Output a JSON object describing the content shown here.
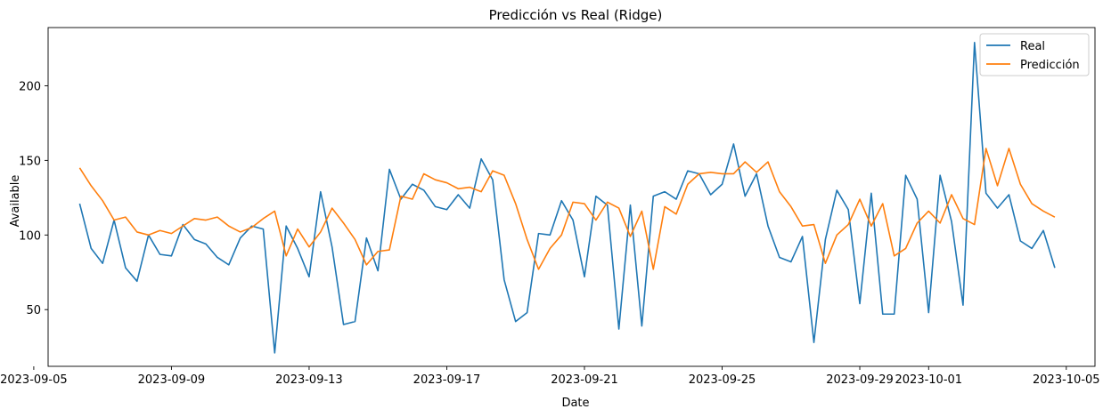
{
  "chart_data": {
    "type": "line",
    "title": "Predicción vs Real (Ridge)",
    "xlabel": "Date",
    "ylabel": "Available",
    "x_axis_type": "date",
    "xlim": [
      "2023-09-05T10:00",
      "2023-10-05T20:00"
    ],
    "ylim": [
      12,
      239
    ],
    "x_ticks": [
      "2023-09-05",
      "2023-09-09",
      "2023-09-13",
      "2023-09-17",
      "2023-09-21",
      "2023-09-25",
      "2023-09-29",
      "2023-10-01",
      "2023-10-05"
    ],
    "y_ticks": [
      50,
      100,
      150,
      200
    ],
    "legend": {
      "position": "top-right",
      "entries": [
        "Real",
        "Predicción"
      ]
    },
    "grid": false,
    "series": [
      {
        "name": "Real",
        "color": "#1f77b4",
        "points": [
          [
            "2023-09-06T08:00",
            121
          ],
          [
            "2023-09-06T16:00",
            91
          ],
          [
            "2023-09-07T00:00",
            81
          ],
          [
            "2023-09-07T08:00",
            110
          ],
          [
            "2023-09-07T16:00",
            78
          ],
          [
            "2023-09-08T00:00",
            69
          ],
          [
            "2023-09-08T08:00",
            100
          ],
          [
            "2023-09-08T16:00",
            87
          ],
          [
            "2023-09-09T00:00",
            86
          ],
          [
            "2023-09-09T08:00",
            107
          ],
          [
            "2023-09-09T16:00",
            97
          ],
          [
            "2023-09-10T00:00",
            94
          ],
          [
            "2023-09-10T08:00",
            85
          ],
          [
            "2023-09-10T16:00",
            80
          ],
          [
            "2023-09-11T00:00",
            98
          ],
          [
            "2023-09-11T08:00",
            106
          ],
          [
            "2023-09-11T16:00",
            104
          ],
          [
            "2023-09-12T00:00",
            21
          ],
          [
            "2023-09-12T08:00",
            106
          ],
          [
            "2023-09-12T16:00",
            91
          ],
          [
            "2023-09-13T00:00",
            72
          ],
          [
            "2023-09-13T08:00",
            129
          ],
          [
            "2023-09-13T16:00",
            92
          ],
          [
            "2023-09-14T00:00",
            40
          ],
          [
            "2023-09-14T08:00",
            42
          ],
          [
            "2023-09-14T16:00",
            98
          ],
          [
            "2023-09-15T00:00",
            76
          ],
          [
            "2023-09-15T08:00",
            144
          ],
          [
            "2023-09-15T16:00",
            124
          ],
          [
            "2023-09-16T00:00",
            134
          ],
          [
            "2023-09-16T08:00",
            130
          ],
          [
            "2023-09-16T16:00",
            119
          ],
          [
            "2023-09-17T00:00",
            117
          ],
          [
            "2023-09-17T08:00",
            127
          ],
          [
            "2023-09-17T16:00",
            118
          ],
          [
            "2023-09-18T00:00",
            151
          ],
          [
            "2023-09-18T08:00",
            137
          ],
          [
            "2023-09-18T16:00",
            70
          ],
          [
            "2023-09-19T00:00",
            42
          ],
          [
            "2023-09-19T08:00",
            48
          ],
          [
            "2023-09-19T16:00",
            101
          ],
          [
            "2023-09-20T00:00",
            100
          ],
          [
            "2023-09-20T08:00",
            123
          ],
          [
            "2023-09-20T16:00",
            110
          ],
          [
            "2023-09-21T00:00",
            72
          ],
          [
            "2023-09-21T08:00",
            126
          ],
          [
            "2023-09-21T16:00",
            120
          ],
          [
            "2023-09-22T00:00",
            37
          ],
          [
            "2023-09-22T08:00",
            120
          ],
          [
            "2023-09-22T16:00",
            39
          ],
          [
            "2023-09-23T00:00",
            126
          ],
          [
            "2023-09-23T08:00",
            129
          ],
          [
            "2023-09-23T16:00",
            124
          ],
          [
            "2023-09-24T00:00",
            143
          ],
          [
            "2023-09-24T08:00",
            141
          ],
          [
            "2023-09-24T16:00",
            127
          ],
          [
            "2023-09-25T00:00",
            134
          ],
          [
            "2023-09-25T08:00",
            161
          ],
          [
            "2023-09-25T16:00",
            126
          ],
          [
            "2023-09-26T00:00",
            141
          ],
          [
            "2023-09-26T08:00",
            106
          ],
          [
            "2023-09-26T16:00",
            85
          ],
          [
            "2023-09-27T00:00",
            82
          ],
          [
            "2023-09-27T08:00",
            99
          ],
          [
            "2023-09-27T16:00",
            28
          ],
          [
            "2023-09-28T00:00",
            97
          ],
          [
            "2023-09-28T08:00",
            130
          ],
          [
            "2023-09-28T16:00",
            117
          ],
          [
            "2023-09-29T00:00",
            54
          ],
          [
            "2023-09-29T08:00",
            128
          ],
          [
            "2023-09-29T16:00",
            47
          ],
          [
            "2023-09-30T00:00",
            47
          ],
          [
            "2023-09-30T08:00",
            140
          ],
          [
            "2023-09-30T16:00",
            124
          ],
          [
            "2023-10-01T00:00",
            48
          ],
          [
            "2023-10-01T08:00",
            140
          ],
          [
            "2023-10-01T16:00",
            109
          ],
          [
            "2023-10-02T00:00",
            53
          ],
          [
            "2023-10-02T08:00",
            229
          ],
          [
            "2023-10-02T16:00",
            128
          ],
          [
            "2023-10-03T00:00",
            118
          ],
          [
            "2023-10-03T08:00",
            127
          ],
          [
            "2023-10-03T16:00",
            96
          ],
          [
            "2023-10-04T00:00",
            91
          ],
          [
            "2023-10-04T08:00",
            103
          ],
          [
            "2023-10-04T16:00",
            78
          ]
        ]
      },
      {
        "name": "Predicción",
        "color": "#ff7f0e",
        "points": [
          [
            "2023-09-06T08:00",
            145
          ],
          [
            "2023-09-06T16:00",
            133
          ],
          [
            "2023-09-07T00:00",
            123
          ],
          [
            "2023-09-07T08:00",
            110
          ],
          [
            "2023-09-07T16:00",
            112
          ],
          [
            "2023-09-08T00:00",
            102
          ],
          [
            "2023-09-08T08:00",
            100
          ],
          [
            "2023-09-08T16:00",
            103
          ],
          [
            "2023-09-09T00:00",
            101
          ],
          [
            "2023-09-09T08:00",
            106
          ],
          [
            "2023-09-09T16:00",
            111
          ],
          [
            "2023-09-10T00:00",
            110
          ],
          [
            "2023-09-10T08:00",
            112
          ],
          [
            "2023-09-10T16:00",
            106
          ],
          [
            "2023-09-11T00:00",
            102
          ],
          [
            "2023-09-11T08:00",
            105
          ],
          [
            "2023-09-11T16:00",
            111
          ],
          [
            "2023-09-12T00:00",
            116
          ],
          [
            "2023-09-12T08:00",
            86
          ],
          [
            "2023-09-12T16:00",
            104
          ],
          [
            "2023-09-13T00:00",
            92
          ],
          [
            "2023-09-13T08:00",
            102
          ],
          [
            "2023-09-13T16:00",
            118
          ],
          [
            "2023-09-14T00:00",
            108
          ],
          [
            "2023-09-14T08:00",
            97
          ],
          [
            "2023-09-14T16:00",
            80
          ],
          [
            "2023-09-15T00:00",
            89
          ],
          [
            "2023-09-15T08:00",
            90
          ],
          [
            "2023-09-15T16:00",
            126
          ],
          [
            "2023-09-16T00:00",
            124
          ],
          [
            "2023-09-16T08:00",
            141
          ],
          [
            "2023-09-16T16:00",
            137
          ],
          [
            "2023-09-17T00:00",
            135
          ],
          [
            "2023-09-17T08:00",
            131
          ],
          [
            "2023-09-17T16:00",
            132
          ],
          [
            "2023-09-18T00:00",
            129
          ],
          [
            "2023-09-18T08:00",
            143
          ],
          [
            "2023-09-18T16:00",
            140
          ],
          [
            "2023-09-19T00:00",
            121
          ],
          [
            "2023-09-19T08:00",
            97
          ],
          [
            "2023-09-19T16:00",
            77
          ],
          [
            "2023-09-20T00:00",
            91
          ],
          [
            "2023-09-20T08:00",
            100
          ],
          [
            "2023-09-20T16:00",
            122
          ],
          [
            "2023-09-21T00:00",
            121
          ],
          [
            "2023-09-21T08:00",
            110
          ],
          [
            "2023-09-21T16:00",
            122
          ],
          [
            "2023-09-22T00:00",
            118
          ],
          [
            "2023-09-22T08:00",
            99
          ],
          [
            "2023-09-22T16:00",
            116
          ],
          [
            "2023-09-23T00:00",
            77
          ],
          [
            "2023-09-23T08:00",
            119
          ],
          [
            "2023-09-23T16:00",
            114
          ],
          [
            "2023-09-24T00:00",
            134
          ],
          [
            "2023-09-24T08:00",
            141
          ],
          [
            "2023-09-24T16:00",
            142
          ],
          [
            "2023-09-25T00:00",
            141
          ],
          [
            "2023-09-25T08:00",
            141
          ],
          [
            "2023-09-25T16:00",
            149
          ],
          [
            "2023-09-26T00:00",
            142
          ],
          [
            "2023-09-26T08:00",
            149
          ],
          [
            "2023-09-26T16:00",
            129
          ],
          [
            "2023-09-27T00:00",
            119
          ],
          [
            "2023-09-27T08:00",
            106
          ],
          [
            "2023-09-27T16:00",
            107
          ],
          [
            "2023-09-28T00:00",
            81
          ],
          [
            "2023-09-28T08:00",
            100
          ],
          [
            "2023-09-28T16:00",
            107
          ],
          [
            "2023-09-29T00:00",
            124
          ],
          [
            "2023-09-29T08:00",
            106
          ],
          [
            "2023-09-29T16:00",
            121
          ],
          [
            "2023-09-30T00:00",
            86
          ],
          [
            "2023-09-30T08:00",
            91
          ],
          [
            "2023-09-30T16:00",
            108
          ],
          [
            "2023-10-01T00:00",
            116
          ],
          [
            "2023-10-01T08:00",
            108
          ],
          [
            "2023-10-01T16:00",
            127
          ],
          [
            "2023-10-02T00:00",
            111
          ],
          [
            "2023-10-02T08:00",
            107
          ],
          [
            "2023-10-02T16:00",
            158
          ],
          [
            "2023-10-03T00:00",
            133
          ],
          [
            "2023-10-03T08:00",
            158
          ],
          [
            "2023-10-03T16:00",
            134
          ],
          [
            "2023-10-04T00:00",
            121
          ],
          [
            "2023-10-04T08:00",
            116
          ],
          [
            "2023-10-04T16:00",
            112
          ]
        ]
      }
    ]
  }
}
